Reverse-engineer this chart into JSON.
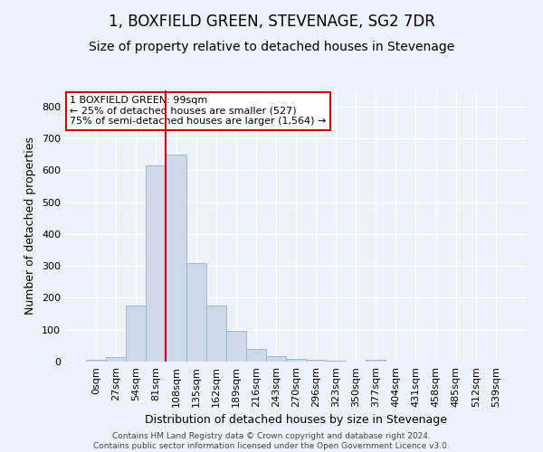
{
  "title": "1, BOXFIELD GREEN, STEVENAGE, SG2 7DR",
  "subtitle": "Size of property relative to detached houses in Stevenage",
  "xlabel": "Distribution of detached houses by size in Stevenage",
  "ylabel": "Number of detached properties",
  "footer_line1": "Contains HM Land Registry data © Crown copyright and database right 2024.",
  "footer_line2": "Contains public sector information licensed under the Open Government Licence v3.0.",
  "bar_labels": [
    "0sqm",
    "27sqm",
    "54sqm",
    "81sqm",
    "108sqm",
    "135sqm",
    "162sqm",
    "189sqm",
    "216sqm",
    "243sqm",
    "270sqm",
    "296sqm",
    "323sqm",
    "350sqm",
    "377sqm",
    "404sqm",
    "431sqm",
    "458sqm",
    "485sqm",
    "512sqm",
    "539sqm"
  ],
  "bar_values": [
    7,
    13,
    175,
    615,
    650,
    308,
    175,
    97,
    40,
    16,
    9,
    6,
    2,
    0,
    5,
    0,
    0,
    0,
    0,
    0,
    0
  ],
  "bar_color": "#ccd9e8",
  "bar_edge_color": "#9ab0c8",
  "vline_index": 4,
  "vline_color": "#cc0000",
  "annotation_line1": "1 BOXFIELD GREEN: 99sqm",
  "annotation_line2": "← 25% of detached houses are smaller (527)",
  "annotation_line3": "75% of semi-detached houses are larger (1,564) →",
  "annotation_box_color": "#ffffff",
  "annotation_box_edge": "#cc0000",
  "ylim": [
    0,
    850
  ],
  "yticks": [
    0,
    100,
    200,
    300,
    400,
    500,
    600,
    700,
    800
  ],
  "bg_color": "#edf2f9",
  "plot_bg_color": "#edf2f9",
  "title_fontsize": 12,
  "subtitle_fontsize": 10,
  "ylabel_fontsize": 9,
  "xlabel_fontsize": 9,
  "tick_fontsize": 8,
  "footer_fontsize": 6.5
}
